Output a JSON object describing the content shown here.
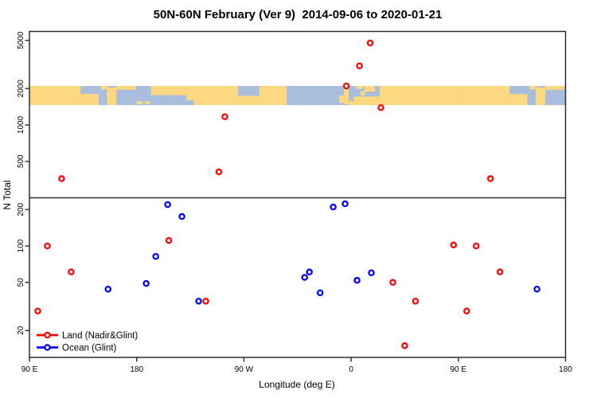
{
  "chart_data": {
    "type": "scatter",
    "title": "50N-60N February (Ver 9)  2014-09-06 to 2020-01-21",
    "xlabel": "Longitude (deg E)",
    "ylabel": "N Total",
    "x_axis": {
      "range_deg_east_extended": [
        90,
        540
      ],
      "wrap_note": "points with longitude 90E-180E are plotted at both ends of the axis",
      "ticks": [
        {
          "pos": 90,
          "label": "90 E"
        },
        {
          "pos": 180,
          "label": "180"
        },
        {
          "pos": 270,
          "label": "90 W"
        },
        {
          "pos": 360,
          "label": "0"
        },
        {
          "pos": 450,
          "label": "90 E"
        },
        {
          "pos": 540,
          "label": "180"
        }
      ]
    },
    "y_axis": {
      "scale": "log",
      "range": [
        12,
        5925
      ],
      "ticks": [
        {
          "value": 20,
          "label": "20"
        },
        {
          "value": 50,
          "label": "50"
        },
        {
          "value": 100,
          "label": "100"
        },
        {
          "value": 200,
          "label": "200"
        },
        {
          "value": 500,
          "label": "500"
        },
        {
          "value": 1000,
          "label": "1000"
        },
        {
          "value": 2000,
          "label": "2000"
        },
        {
          "value": 5000,
          "label": "5000"
        }
      ]
    },
    "reference_line": {
      "value": 250
    },
    "map_band": {
      "description": "world land/ocean map strip of latitude band 50N-60N",
      "value_top": 2100,
      "value_bottom": 1460,
      "land_color": "#fcd880",
      "ocean_color": "#a9bedc",
      "land_segments_lon_extended": [
        [
          90,
          133,
          0,
          1
        ],
        [
          133,
          148,
          0.42,
          1
        ],
        [
          150,
          156,
          0,
          0.18
        ],
        [
          155,
          163,
          0.08,
          1
        ],
        [
          163,
          179,
          0,
          0.2
        ],
        [
          180,
          185,
          0.8,
          0.95
        ],
        [
          187,
          191,
          0.8,
          0.95
        ],
        [
          192,
          222,
          0,
          0.48
        ],
        [
          222,
          228,
          0,
          0.75
        ],
        [
          228,
          265,
          0,
          1
        ],
        [
          265,
          283,
          0.52,
          1
        ],
        [
          283,
          306,
          0,
          1
        ],
        [
          350,
          354,
          0.5,
          0.88
        ],
        [
          354,
          358,
          0.12,
          0.95
        ],
        [
          358,
          362,
          0.78,
          1
        ],
        [
          362,
          374,
          0.55,
          1
        ],
        [
          364,
          370,
          0,
          0.15
        ],
        [
          368,
          371.5,
          0.28,
          0.5
        ],
        [
          371,
          380,
          0,
          0.3
        ],
        [
          374,
          384,
          0.55,
          1
        ],
        [
          384,
          450,
          0,
          1
        ],
        [
          450,
          493,
          0,
          1
        ],
        [
          493,
          508,
          0.42,
          1
        ],
        [
          510,
          516,
          0,
          0.18
        ],
        [
          515,
          523,
          0.08,
          1
        ],
        [
          523,
          539,
          0,
          0.2
        ]
      ]
    },
    "series": [
      {
        "name": "Land (Nadir&Glint)",
        "color": "#ff0000",
        "points": [
          {
            "lon": 97,
            "n": 29
          },
          {
            "lon": 105,
            "n": 100
          },
          {
            "lon": 117,
            "n": 360
          },
          {
            "lon": 125,
            "n": 61
          },
          {
            "lon": -153,
            "n": 111
          },
          {
            "lon": -122,
            "n": 35
          },
          {
            "lon": -111,
            "n": 410
          },
          {
            "lon": -106,
            "n": 1170
          },
          {
            "lon": -4,
            "n": 2100
          },
          {
            "lon": 7,
            "n": 3080
          },
          {
            "lon": 16,
            "n": 4760
          },
          {
            "lon": 25,
            "n": 1390
          },
          {
            "lon": 35,
            "n": 50
          },
          {
            "lon": 45,
            "n": 15
          },
          {
            "lon": 54,
            "n": 35
          },
          {
            "lon": 86,
            "n": 102
          }
        ]
      },
      {
        "name": "Ocean (Glint)",
        "color": "#0000ff",
        "points": [
          {
            "lon": 156,
            "n": 44
          },
          {
            "lon": -172,
            "n": 49
          },
          {
            "lon": -164,
            "n": 82
          },
          {
            "lon": -154,
            "n": 220
          },
          {
            "lon": -142,
            "n": 175
          },
          {
            "lon": -128,
            "n": 35
          },
          {
            "lon": -39,
            "n": 55
          },
          {
            "lon": -35,
            "n": 61
          },
          {
            "lon": -26,
            "n": 41
          },
          {
            "lon": -15,
            "n": 210
          },
          {
            "lon": -5,
            "n": 223
          },
          {
            "lon": 5,
            "n": 52
          },
          {
            "lon": 17,
            "n": 60
          }
        ]
      }
    ]
  },
  "legend": {
    "items": [
      {
        "label": "Land (Nadir&Glint)",
        "color": "#ff0000"
      },
      {
        "label": "Ocean (Glint)",
        "color": "#0000ff"
      }
    ]
  }
}
